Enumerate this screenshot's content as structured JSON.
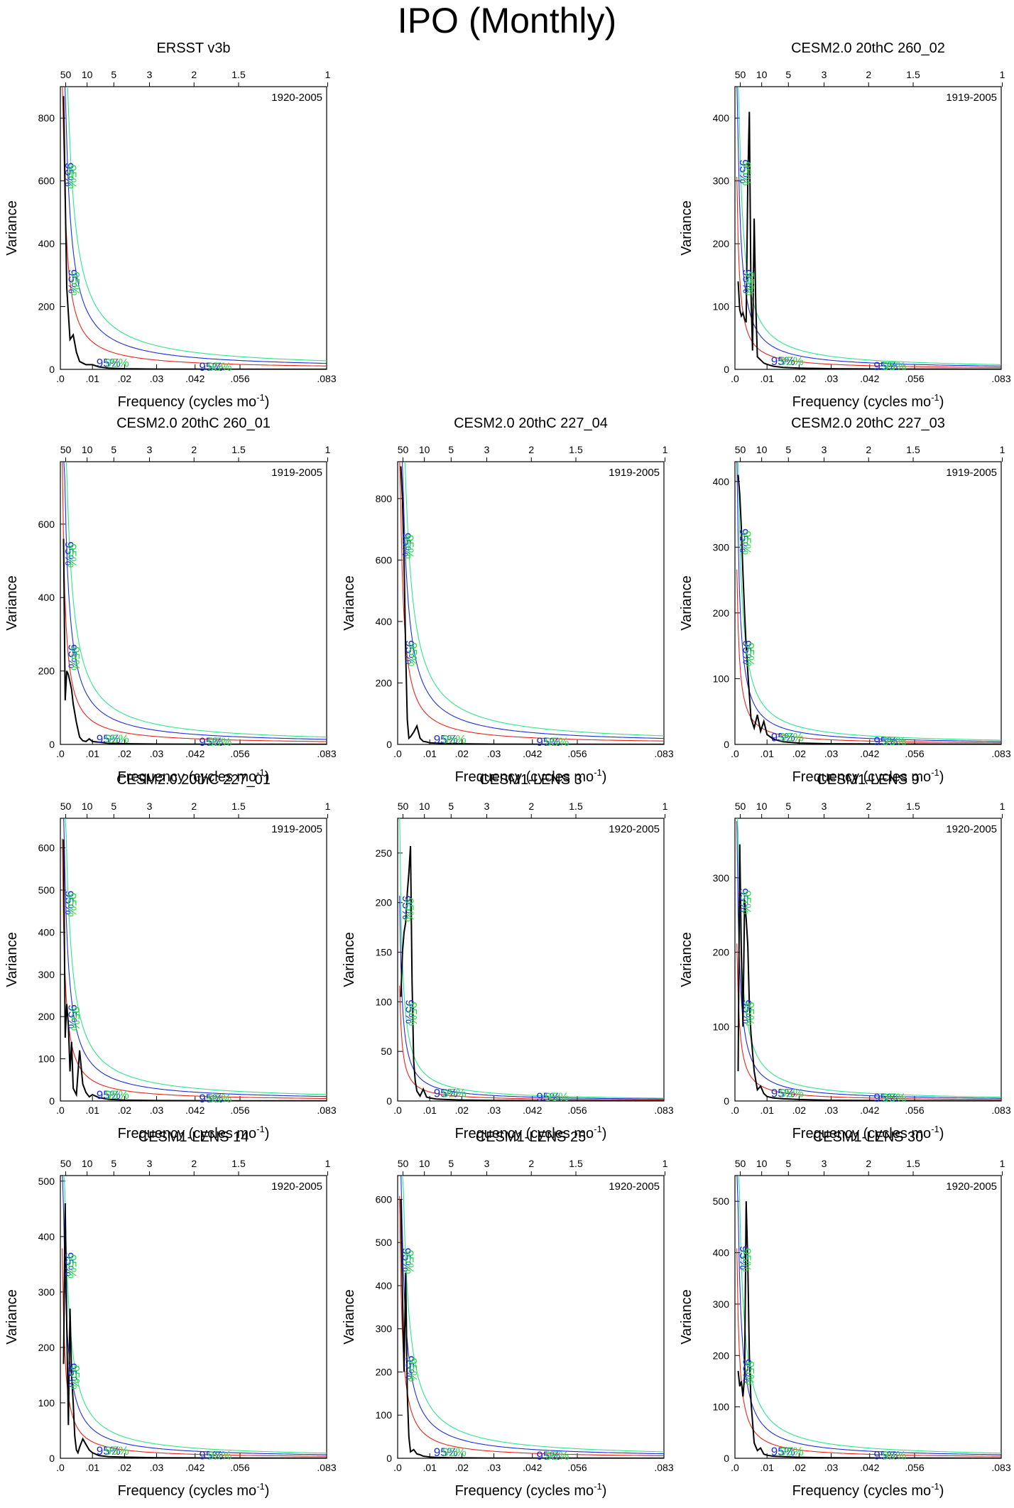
{
  "title": "IPO (Monthly)",
  "colors": {
    "spectrum": "#000000",
    "red_noise": "#e8241c",
    "conf_95": "#1c2ee0",
    "conf_99": "#2ee68a",
    "conf_label_blue": "#1c2ee0",
    "conf_label_green": "#22dd44"
  },
  "axes_common": {
    "xlabel": "Frequency (cycles mo",
    "xlabel_sup": "-1",
    "xlabel_close": ")",
    "ylabel": "Variance",
    "xlim": [
      0,
      0.083
    ],
    "x_ticks": [
      ".0",
      ".01",
      ".02",
      ".03",
      ".042",
      ".056",
      ".083"
    ],
    "x_tick_values": [
      0,
      0.01,
      0.02,
      0.03,
      0.042,
      0.056,
      0.083
    ],
    "period_ticks": [
      "50",
      "10",
      "5",
      "3",
      "2",
      "1.5",
      "1"
    ],
    "period_values": [
      50,
      10,
      5,
      3,
      2,
      1.5,
      1
    ],
    "conf_label": "95%"
  },
  "chart_data": [
    {
      "type": "line",
      "title": "ERSST v3b",
      "period": "1920-2005",
      "ylim": [
        0,
        900
      ],
      "y_ticks": [
        0,
        200,
        400,
        600,
        800
      ],
      "series": [
        {
          "x": [
            0.001,
            0.002,
            0.003,
            0.004,
            0.005,
            0.006,
            0.007,
            0.008,
            0.01,
            0.012,
            0.015,
            0.02,
            0.03,
            0.05,
            0.083
          ],
          "values": [
            870,
            260,
            95,
            110,
            55,
            25,
            20,
            15,
            15,
            8,
            4,
            2,
            1,
            0.5,
            0.2
          ]
        }
      ],
      "red_noise_scale": 1.0,
      "conf_label_y": [
        620,
        280,
        15,
        2
      ]
    },
    {
      "type": "line",
      "title": "CESM2.0 20thC 260_02",
      "period": "1919-2005",
      "ylim": [
        0,
        450
      ],
      "y_ticks": [
        0,
        100,
        200,
        300,
        400
      ],
      "series": [
        {
          "x": [
            0.001,
            0.0015,
            0.002,
            0.0025,
            0.003,
            0.0035,
            0.004,
            0.0045,
            0.005,
            0.0055,
            0.006,
            0.0065,
            0.007,
            0.008,
            0.009,
            0.01,
            0.012,
            0.015,
            0.02,
            0.03,
            0.05,
            0.083
          ],
          "values": [
            140,
            95,
            85,
            90,
            80,
            75,
            300,
            410,
            120,
            30,
            240,
            100,
            20,
            15,
            10,
            8,
            5,
            3,
            2,
            1,
            0.5,
            0.2
          ]
        }
      ],
      "red_noise_scale": 0.55,
      "conf_label_y": [
        315,
        140,
        10,
        2
      ]
    },
    {
      "type": "line",
      "title": "CESM2.0 20thC 260_01",
      "period": "1919-2005",
      "ylim": [
        0,
        770
      ],
      "y_ticks": [
        0,
        200,
        400,
        600
      ],
      "series": [
        {
          "x": [
            0.001,
            0.0015,
            0.002,
            0.0025,
            0.003,
            0.0035,
            0.004,
            0.005,
            0.006,
            0.007,
            0.008,
            0.009,
            0.01,
            0.012,
            0.015,
            0.02,
            0.03,
            0.05,
            0.083
          ],
          "values": [
            560,
            120,
            200,
            190,
            170,
            150,
            110,
            60,
            20,
            10,
            8,
            15,
            8,
            6,
            3,
            2,
            1,
            0.5,
            0.2
          ]
        }
      ],
      "red_noise_scale": 0.85,
      "conf_label_y": [
        520,
        240,
        10,
        2
      ]
    },
    {
      "type": "line",
      "title": "CESM2.0 20thC 227_04",
      "period": "1919-2005",
      "ylim": [
        0,
        920
      ],
      "y_ticks": [
        0,
        200,
        400,
        600,
        800
      ],
      "series": [
        {
          "x": [
            0.001,
            0.0015,
            0.002,
            0.0025,
            0.003,
            0.0035,
            0.004,
            0.005,
            0.006,
            0.007,
            0.008,
            0.009,
            0.01,
            0.012,
            0.015,
            0.02,
            0.03,
            0.05,
            0.083
          ],
          "values": [
            905,
            800,
            600,
            300,
            80,
            20,
            25,
            40,
            60,
            20,
            10,
            8,
            5,
            4,
            3,
            2,
            1,
            0.5,
            0.2
          ]
        }
      ],
      "red_noise_scale": 1.0,
      "conf_label_y": [
        650,
        300,
        10,
        2
      ]
    },
    {
      "type": "line",
      "title": "CESM2.0 20thC 227_03",
      "period": "1919-2005",
      "ylim": [
        0,
        430
      ],
      "y_ticks": [
        0,
        100,
        200,
        300,
        400
      ],
      "series": [
        {
          "x": [
            0.001,
            0.0015,
            0.002,
            0.0025,
            0.003,
            0.0035,
            0.004,
            0.005,
            0.006,
            0.007,
            0.008,
            0.009,
            0.01,
            0.012,
            0.015,
            0.02,
            0.03,
            0.05,
            0.083
          ],
          "values": [
            410,
            380,
            330,
            260,
            200,
            150,
            110,
            40,
            25,
            45,
            20,
            35,
            15,
            8,
            4,
            2,
            1,
            0.5,
            0.2
          ]
        }
      ],
      "red_noise_scale": 0.5,
      "conf_label_y": [
        310,
        140,
        8,
        2
      ]
    },
    {
      "type": "line",
      "title": "CESM2.0 20thC 227_01",
      "period": "1919-2005",
      "ylim": [
        0,
        670
      ],
      "y_ticks": [
        0,
        100,
        200,
        300,
        400,
        500,
        600
      ],
      "series": [
        {
          "x": [
            0.001,
            0.0015,
            0.002,
            0.0025,
            0.003,
            0.0035,
            0.004,
            0.005,
            0.006,
            0.007,
            0.008,
            0.009,
            0.01,
            0.012,
            0.015,
            0.02,
            0.03,
            0.05,
            0.083
          ],
          "values": [
            620,
            150,
            230,
            180,
            70,
            140,
            30,
            15,
            120,
            40,
            20,
            10,
            15,
            8,
            4,
            2,
            1,
            0.5,
            0.2
          ]
        }
      ],
      "red_noise_scale": 0.75,
      "conf_label_y": [
        470,
        200,
        10,
        2
      ]
    },
    {
      "type": "line",
      "title": "CESM1-LENS 3",
      "period": "1920-2005",
      "ylim": [
        0,
        285
      ],
      "y_ticks": [
        0,
        50,
        100,
        150,
        200,
        250
      ],
      "series": [
        {
          "x": [
            0.001,
            0.0015,
            0.002,
            0.0025,
            0.003,
            0.0035,
            0.004,
            0.0045,
            0.005,
            0.0055,
            0.006,
            0.007,
            0.008,
            0.009,
            0.01,
            0.012,
            0.015,
            0.02,
            0.03,
            0.05,
            0.083
          ],
          "values": [
            105,
            150,
            170,
            180,
            210,
            230,
            257,
            120,
            40,
            20,
            10,
            5,
            12,
            4,
            3,
            2,
            1.5,
            1,
            0.5,
            0.3,
            0.1
          ]
        }
      ],
      "red_noise_scale": 0.33,
      "conf_label_y": [
        195,
        90,
        6,
        2
      ]
    },
    {
      "type": "line",
      "title": "CESM1-LENS 9",
      "period": "1920-2005",
      "ylim": [
        0,
        380
      ],
      "y_ticks": [
        0,
        100,
        200,
        300
      ],
      "series": [
        {
          "x": [
            0.001,
            0.0015,
            0.002,
            0.0025,
            0.003,
            0.0035,
            0.004,
            0.0045,
            0.005,
            0.006,
            0.007,
            0.008,
            0.009,
            0.01,
            0.012,
            0.015,
            0.02,
            0.03,
            0.05,
            0.083
          ],
          "values": [
            40,
            345,
            200,
            100,
            270,
            245,
            210,
            130,
            90,
            40,
            15,
            20,
            10,
            6,
            4,
            3,
            2,
            1,
            0.5,
            0.2
          ]
        }
      ],
      "red_noise_scale": 0.45,
      "conf_label_y": [
        270,
        120,
        8,
        2
      ]
    },
    {
      "type": "line",
      "title": "CESM1-LENS 14",
      "period": "1920-2005",
      "ylim": [
        0,
        510
      ],
      "y_ticks": [
        0,
        100,
        200,
        300,
        400,
        500
      ],
      "series": [
        {
          "x": [
            0.001,
            0.0015,
            0.002,
            0.0025,
            0.003,
            0.0035,
            0.004,
            0.0045,
            0.005,
            0.0055,
            0.006,
            0.007,
            0.008,
            0.009,
            0.01,
            0.012,
            0.015,
            0.02,
            0.03,
            0.05,
            0.083
          ],
          "values": [
            170,
            460,
            240,
            60,
            270,
            150,
            100,
            40,
            15,
            10,
            20,
            35,
            25,
            15,
            10,
            5,
            3,
            2,
            1,
            0.5,
            0.2
          ]
        }
      ],
      "red_noise_scale": 0.6,
      "conf_label_y": [
        350,
        150,
        10,
        2
      ]
    },
    {
      "type": "line",
      "title": "CESM1-LENS 25",
      "period": "1920-2005",
      "ylim": [
        0,
        655
      ],
      "y_ticks": [
        0,
        100,
        200,
        300,
        400,
        500,
        600
      ],
      "series": [
        {
          "x": [
            0.001,
            0.0015,
            0.002,
            0.0025,
            0.003,
            0.0035,
            0.004,
            0.005,
            0.006,
            0.007,
            0.008,
            0.009,
            0.01,
            0.012,
            0.015,
            0.02,
            0.03,
            0.05,
            0.083
          ],
          "values": [
            600,
            380,
            200,
            430,
            150,
            50,
            15,
            20,
            10,
            8,
            5,
            4,
            3,
            2,
            1.5,
            1,
            0.5,
            0.3,
            0.1
          ]
        }
      ],
      "red_noise_scale": 0.75,
      "conf_label_y": [
        460,
        210,
        10,
        2
      ]
    },
    {
      "type": "line",
      "title": "CESM1-LENS 30",
      "period": "1920-2005",
      "ylim": [
        0,
        550
      ],
      "y_ticks": [
        0,
        100,
        200,
        300,
        400,
        500
      ],
      "series": [
        {
          "x": [
            0.001,
            0.0015,
            0.002,
            0.0025,
            0.003,
            0.0035,
            0.004,
            0.0045,
            0.005,
            0.006,
            0.007,
            0.008,
            0.009,
            0.01,
            0.012,
            0.015,
            0.02,
            0.03,
            0.05,
            0.083
          ],
          "values": [
            170,
            140,
            150,
            120,
            160,
            500,
            380,
            200,
            110,
            30,
            15,
            20,
            8,
            6,
            4,
            3,
            2,
            1,
            0.5,
            0.2
          ]
        }
      ],
      "red_noise_scale": 0.6,
      "conf_label_y": [
        390,
        170,
        10,
        2
      ]
    }
  ]
}
